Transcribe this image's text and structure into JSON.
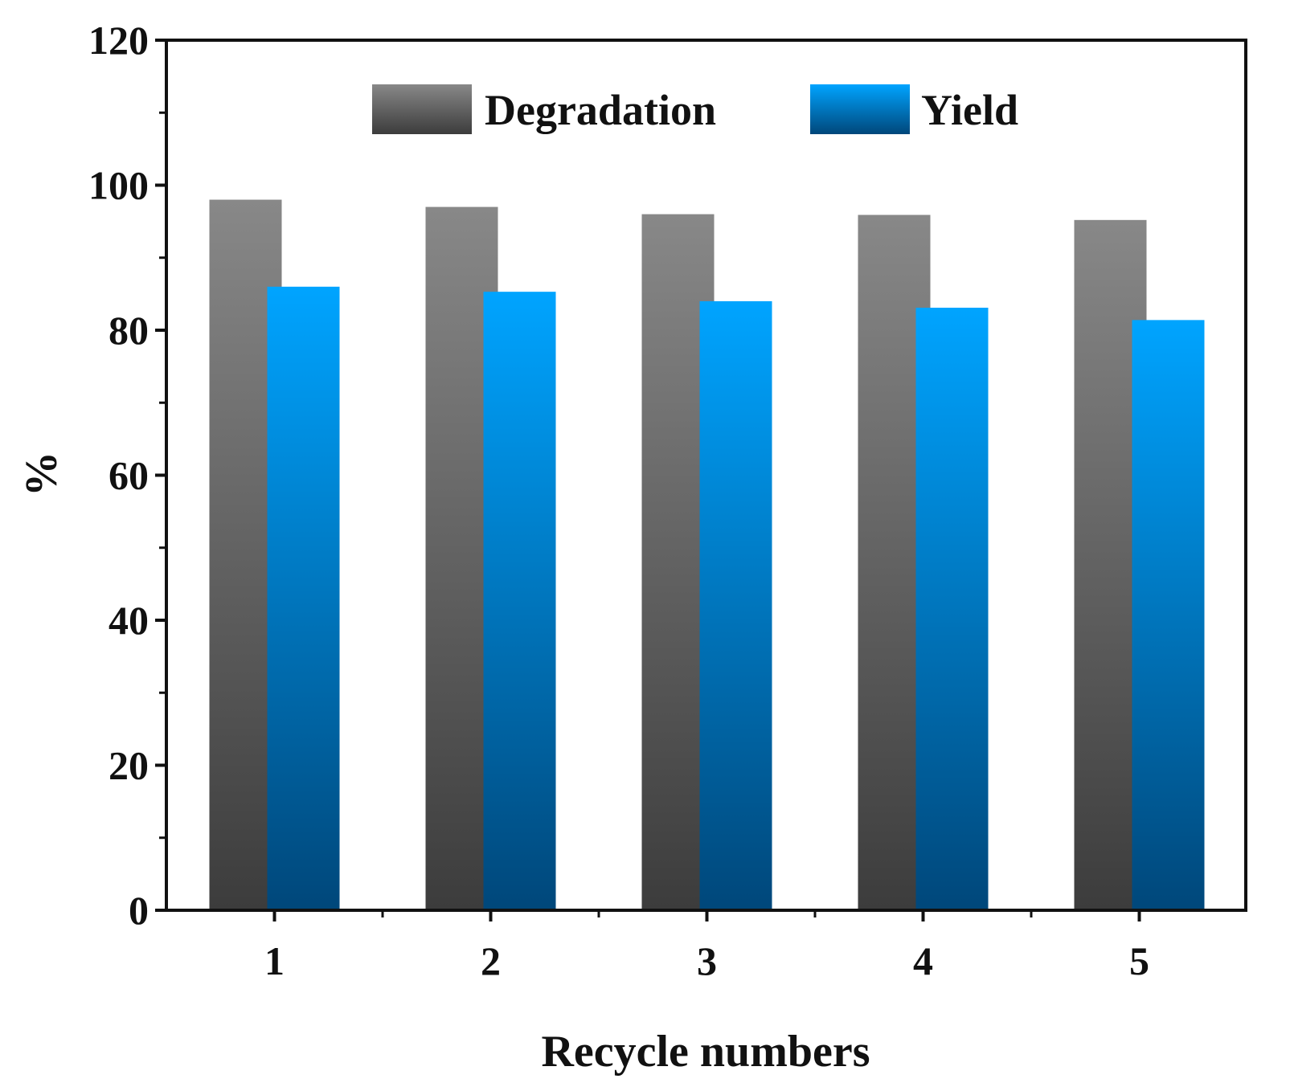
{
  "chart_data": {
    "type": "bar",
    "title": "",
    "xlabel": "Recycle numbers",
    "ylabel": "%",
    "categories": [
      "1",
      "2",
      "3",
      "4",
      "5"
    ],
    "series": [
      {
        "name": "Degradation",
        "values": [
          98,
          97,
          96,
          95.9,
          95.2
        ],
        "color_top": "#888888",
        "color_bottom": "#3c3c3c"
      },
      {
        "name": "Yield",
        "values": [
          86,
          85.3,
          84,
          83.1,
          81.4
        ],
        "color_top": "#00a4ff",
        "color_bottom": "#00477a"
      }
    ],
    "ylim": [
      0,
      120
    ],
    "yticks": [
      0,
      20,
      40,
      60,
      80,
      100,
      120
    ],
    "ytick_labels": [
      "0",
      "20",
      "40",
      "60",
      "80",
      "100",
      "120"
    ],
    "grid": false,
    "legend_position": "top"
  }
}
